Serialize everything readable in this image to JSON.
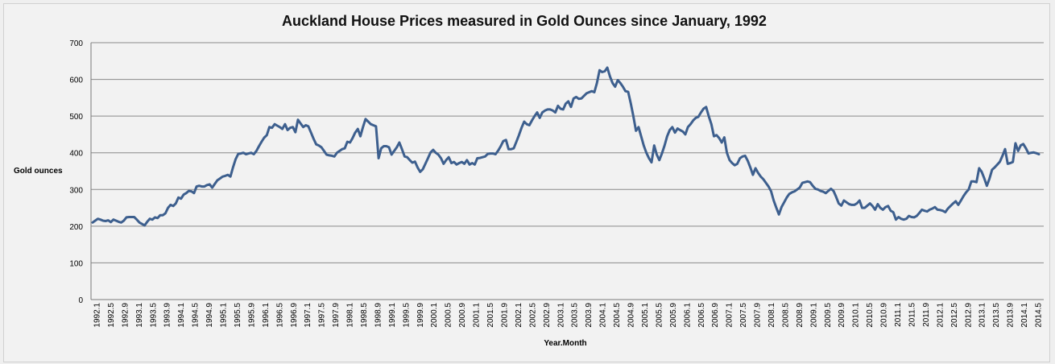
{
  "chart_data": {
    "type": "line",
    "title": "Auckland House Prices measured in Gold Ounces since January, 1992",
    "xlabel": "Year.Month",
    "ylabel": "Gold ounces",
    "ylim": [
      0,
      700
    ],
    "yticks": [
      0,
      100,
      200,
      300,
      400,
      500,
      600,
      700
    ],
    "grid": true,
    "line_color": "#3d5f8e",
    "x_tick_labels": [
      "1992.1",
      "1992.5",
      "1992.9",
      "1993.1",
      "1993.5",
      "1993.9",
      "1994.1",
      "1994.5",
      "1994.9",
      "1995.1",
      "1995.5",
      "1995.9",
      "1996.1",
      "1996.5",
      "1996.9",
      "1997.1",
      "1997.5",
      "1997.9",
      "1998.1",
      "1998.5",
      "1998.9",
      "1999.1",
      "1999.5",
      "1999.9",
      "2000.1",
      "2000.5",
      "2000.9",
      "2001.1",
      "2001.5",
      "2001.9",
      "2002.1",
      "2002.5",
      "2002.9",
      "2003.1",
      "2003.5",
      "2003.9",
      "2004.1",
      "2004.5",
      "2004.9",
      "2005.1",
      "2005.5",
      "2005.9",
      "2006.1",
      "2006.5",
      "2006.9",
      "2007.1",
      "2007.5",
      "2007.9",
      "2008.1",
      "2008.5",
      "2008.9",
      "2009.1",
      "2009.5",
      "2009.9",
      "2010.1",
      "2010.5",
      "2010.9",
      "2011.1",
      "2011.5",
      "2011.9",
      "2012.1",
      "2012.5",
      "2012.9",
      "2013.1",
      "2013.5",
      "2013.9",
      "2014.1",
      "2014.5"
    ],
    "series": [
      {
        "values": [
          210,
          215,
          220,
          218,
          215,
          214,
          216,
          211,
          218,
          215,
          212,
          210,
          215,
          224,
          225,
          225,
          225,
          218,
          210,
          206,
          202,
          212,
          220,
          218,
          224,
          222,
          230,
          230,
          235,
          250,
          258,
          255,
          262,
          278,
          275,
          286,
          290,
          296,
          295,
          290,
          308,
          310,
          308,
          308,
          312,
          314,
          305,
          315,
          325,
          330,
          335,
          337,
          340,
          335,
          360,
          382,
          397,
          398,
          400,
          396,
          398,
          400,
          396,
          405,
          418,
          430,
          441,
          448,
          470,
          468,
          478,
          474,
          470,
          465,
          478,
          462,
          468,
          470,
          456,
          490,
          480,
          470,
          475,
          472,
          455,
          438,
          423,
          420,
          415,
          405,
          395,
          393,
          392,
          390,
          400,
          405,
          410,
          412,
          430,
          428,
          440,
          455,
          465,
          445,
          470,
          492,
          485,
          478,
          475,
          472,
          385,
          412,
          418,
          418,
          415,
          395,
          405,
          415,
          428,
          410,
          390,
          388,
          380,
          373,
          376,
          360,
          348,
          355,
          370,
          385,
          401,
          408,
          400,
          395,
          385,
          370,
          380,
          388,
          372,
          375,
          368,
          372,
          375,
          370,
          380,
          368,
          372,
          368,
          385,
          386,
          388,
          390,
          397,
          398,
          398,
          396,
          406,
          418,
          432,
          435,
          410,
          410,
          412,
          430,
          448,
          468,
          485,
          478,
          475,
          488,
          500,
          510,
          495,
          510,
          515,
          518,
          518,
          515,
          510,
          528,
          520,
          518,
          534,
          540,
          525,
          548,
          552,
          547,
          548,
          555,
          562,
          565,
          568,
          565,
          590,
          625,
          620,
          622,
          632,
          608,
          590,
          580,
          598,
          590,
          580,
          568,
          566,
          535,
          500,
          460,
          470,
          445,
          420,
          400,
          385,
          374,
          420,
          395,
          380,
          398,
          420,
          445,
          462,
          470,
          455,
          466,
          462,
          458,
          450,
          470,
          478,
          488,
          495,
          498,
          510,
          520,
          525,
          500,
          478,
          445,
          448,
          440,
          428,
          442,
          400,
          380,
          372,
          366,
          370,
          385,
          390,
          392,
          378,
          360,
          340,
          358,
          345,
          335,
          328,
          318,
          308,
          295,
          270,
          250,
          232,
          252,
          265,
          278,
          288,
          292,
          295,
          300,
          305,
          318,
          320,
          322,
          320,
          310,
          302,
          300,
          296,
          294,
          290,
          296,
          302,
          296,
          280,
          262,
          256,
          270,
          265,
          260,
          258,
          258,
          262,
          270,
          250,
          250,
          256,
          262,
          255,
          245,
          260,
          250,
          245,
          252,
          255,
          242,
          238,
          218,
          225,
          220,
          218,
          220,
          228,
          225,
          224,
          228,
          236,
          245,
          242,
          240,
          245,
          248,
          252,
          245,
          244,
          242,
          238,
          248,
          255,
          262,
          268,
          258,
          270,
          282,
          292,
          300,
          322,
          322,
          320,
          358,
          348,
          330,
          310,
          330,
          354,
          360,
          368,
          376,
          392,
          410,
          370,
          372,
          375,
          426,
          405,
          420,
          424,
          412,
          398,
          400,
          401,
          399,
          396
        ]
      }
    ]
  }
}
